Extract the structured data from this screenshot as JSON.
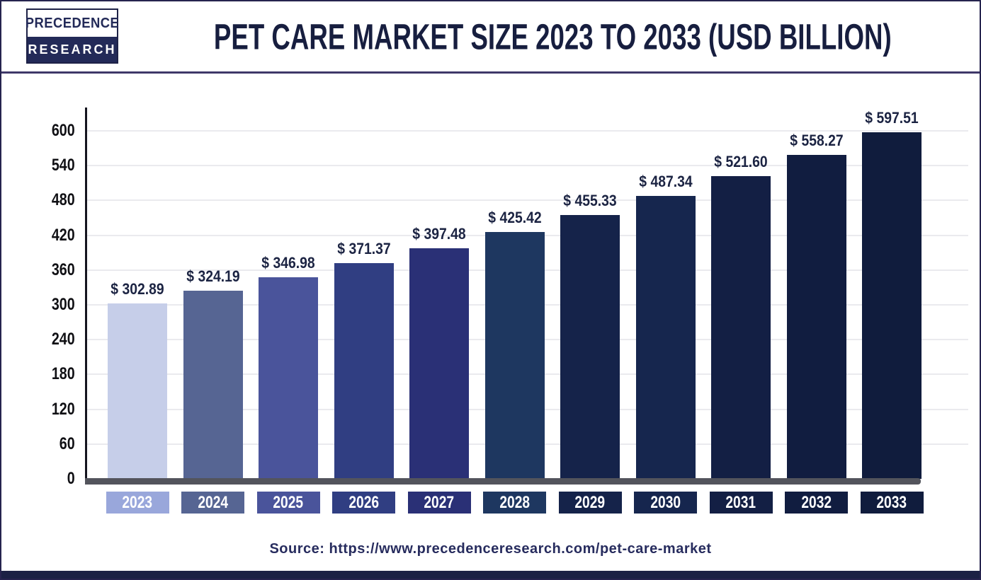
{
  "logo": {
    "line1": "PRECEDENCE",
    "line2": "RESEARCH"
  },
  "header": {
    "title": "PET CARE MARKET SIZE 2023 TO 2033 (USD BILLION)"
  },
  "footer": {
    "source_label": "Source:",
    "source_url": "https://www.precedenceresearch.com/pet-care-market"
  },
  "chart_data": {
    "type": "bar",
    "title": "Pet Care Market Size 2023 to 2033 (USD Billion)",
    "xlabel": "",
    "ylabel": "",
    "unit": "USD Billion",
    "categories": [
      "2023",
      "2024",
      "2025",
      "2026",
      "2027",
      "2028",
      "2029",
      "2030",
      "2031",
      "2032",
      "2033"
    ],
    "values": [
      302.89,
      324.19,
      346.98,
      371.37,
      397.48,
      425.42,
      455.33,
      487.34,
      521.6,
      558.27,
      597.51
    ],
    "value_labels": [
      "$ 302.89",
      "$ 324.19",
      "$ 346.98",
      "$ 371.37",
      "$ 397.48",
      "$ 425.42",
      "$ 455.33",
      "$ 487.34",
      "$ 521.60",
      "$ 558.27",
      "$ 597.51"
    ],
    "ylim": [
      0,
      600
    ],
    "yticks": [
      0,
      60,
      120,
      180,
      240,
      300,
      360,
      420,
      480,
      540,
      600
    ],
    "ytick_labels": [
      "0",
      "60",
      "120",
      "180",
      "240",
      "300",
      "360",
      "420",
      "480",
      "540",
      "600"
    ],
    "grid": true,
    "legend": false,
    "bar_colors": [
      "#c6cee9",
      "#566593",
      "#4a549b",
      "#303e82",
      "#2a3076",
      "#1e3760",
      "#15234a",
      "#16264e",
      "#131f44",
      "#111d40",
      "#101c3d"
    ],
    "chip_colors": [
      "#99a7db",
      "#566593",
      "#4a549b",
      "#303e82",
      "#2a3076",
      "#1e3760",
      "#15234a",
      "#16264e",
      "#131f44",
      "#111d40",
      "#101c3d"
    ]
  },
  "colors": {
    "title_text": "#171e3f",
    "divider": "#3f3869",
    "axis_line": "#15151f",
    "baseline": "#53545c",
    "gridline": "#eaeaee",
    "value_label_text": "#1b2342",
    "source_text": "#272c5e",
    "bottom_bar": "#1b2144",
    "logo_navy": "#232a58"
  }
}
